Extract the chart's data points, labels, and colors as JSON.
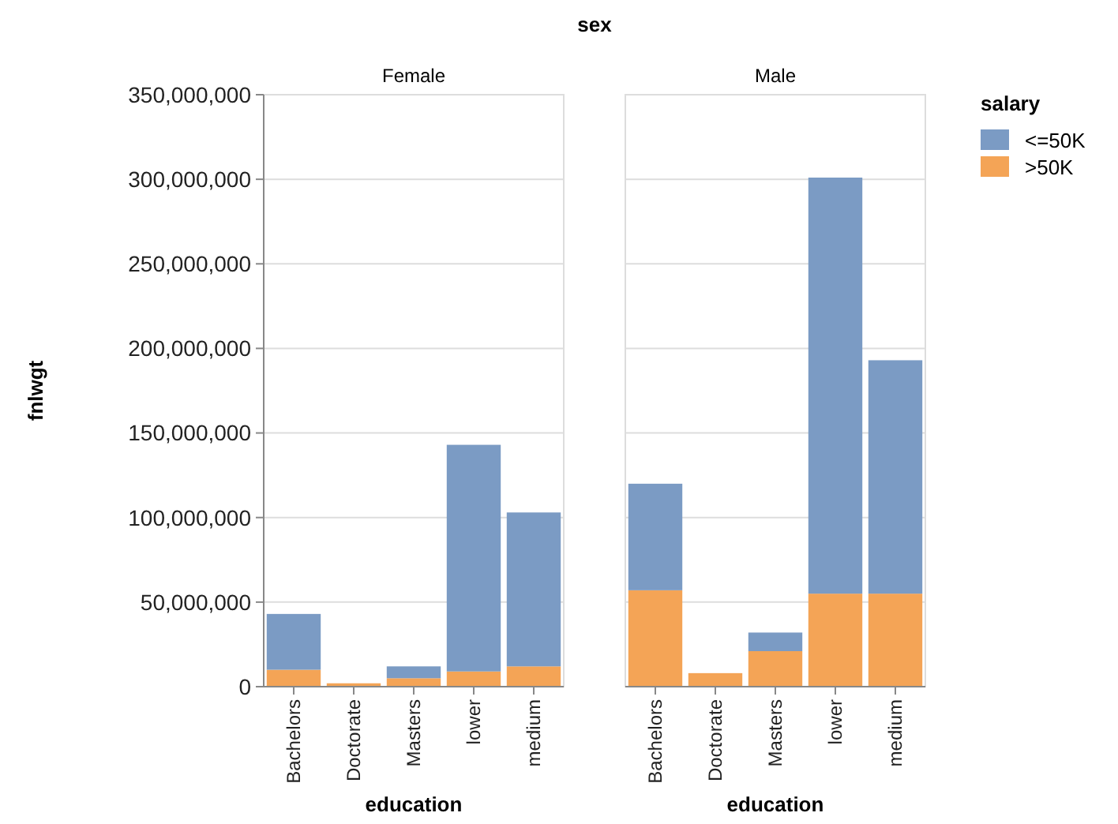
{
  "chart_data": [
    {
      "type": "bar",
      "title": "Female",
      "annotations": [
        "sex"
      ],
      "xlabel": "education",
      "ylabel": "fnlwgt",
      "stacked": true,
      "grid": "y",
      "legend": false,
      "categories": [
        "Bachelors",
        "Doctorate",
        "Masters",
        "lower",
        "medium"
      ],
      "series": [
        {
          "color": "#f4a456",
          "values": [
            10000000.0,
            2000000.0,
            5000000.0,
            9000000.0,
            12000000.0
          ]
        },
        {
          "color": "#7b9bc4",
          "values": [
            33000000.0,
            null,
            7000000.0,
            134000000.0,
            91000000.0
          ]
        }
      ],
      "ylim": [
        0,
        350000000
      ],
      "yticks": [
        {
          "value": 0,
          "label": "0"
        },
        {
          "value": 50000000,
          "label": "50,000,000"
        },
        {
          "value": 100000000,
          "label": "100,000,000"
        },
        {
          "value": 150000000,
          "label": "150,000,000"
        },
        {
          "value": 200000000,
          "label": "200,000,000"
        },
        {
          "value": 250000000,
          "label": "250,000,000"
        },
        {
          "value": 300000000,
          "label": "300,000,000"
        },
        {
          "value": 350000000,
          "label": "350,000,000"
        }
      ]
    },
    {
      "type": "bar",
      "title": "Male",
      "xlabel": "education",
      "stacked": true,
      "grid": "y",
      "legend": "right",
      "legend_title": "salary",
      "tick_labels": "x",
      "categories": [
        "Bachelors",
        "Doctorate",
        "Masters",
        "lower",
        "medium"
      ],
      "series": [
        {
          "name": ">50K",
          "color": "#f4a456",
          "values": [
            57000000.0,
            8000000.0,
            21000000.0,
            55000000.0,
            55000000.0
          ]
        },
        {
          "name": "<=50K",
          "color": "#7b9bc4",
          "values": [
            63000000.0,
            null,
            11000000.0,
            246000000.0,
            138000000.0
          ]
        }
      ],
      "ylim": [
        0,
        350000000
      ],
      "yticks": [
        0,
        50000000,
        100000000,
        150000000,
        200000000,
        250000000,
        300000000,
        350000000
      ]
    }
  ]
}
